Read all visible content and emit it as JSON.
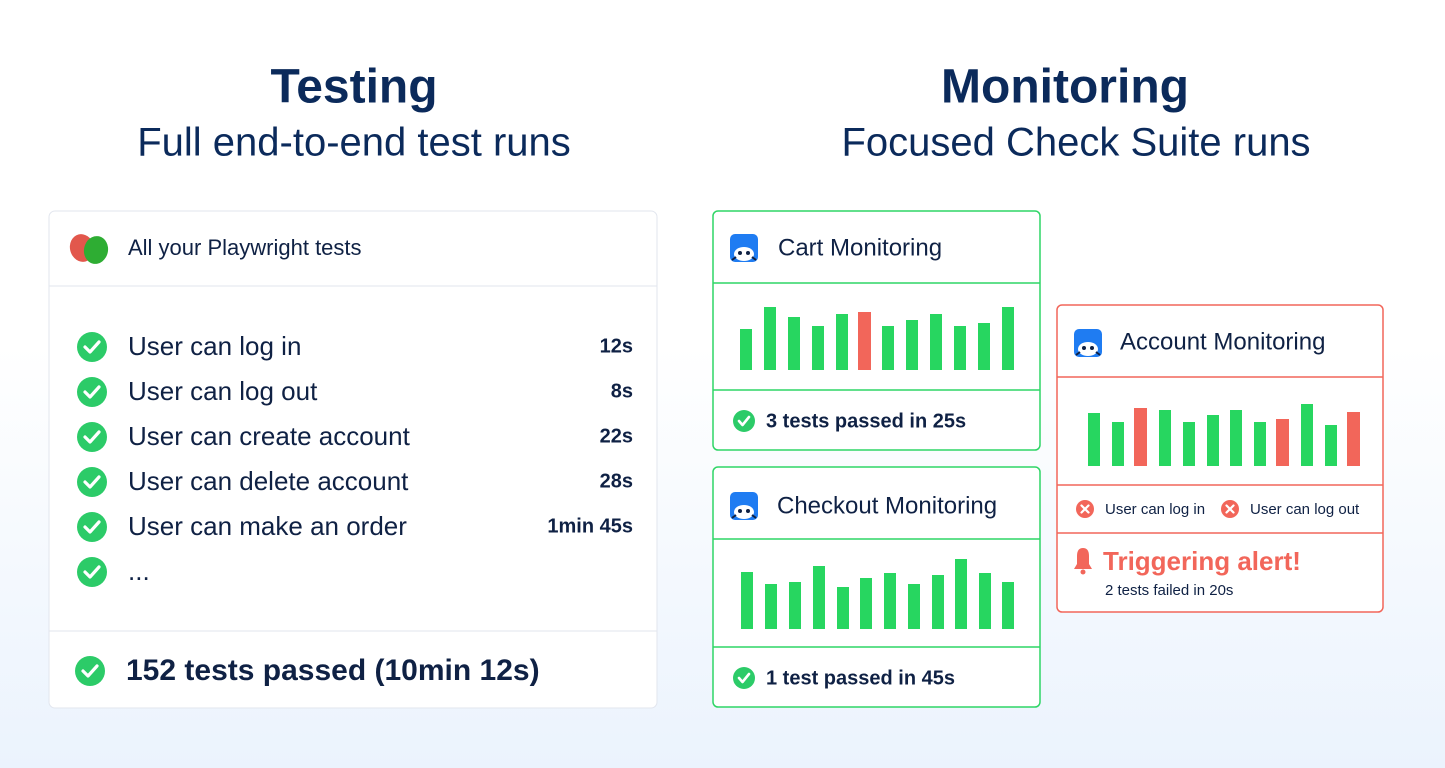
{
  "testing": {
    "title": "Testing",
    "subtitle": "Full end-to-end test runs",
    "card": {
      "header": "All your Playwright tests",
      "tests": [
        {
          "name": "User can log in",
          "duration": "12s"
        },
        {
          "name": "User can log out",
          "duration": "8s"
        },
        {
          "name": "User can create account",
          "duration": "22s"
        },
        {
          "name": "User can delete account",
          "duration": "28s"
        },
        {
          "name": "User can make an order",
          "duration": "1min 45s"
        }
      ],
      "more": "...",
      "summary": "152 tests passed (10min 12s)"
    }
  },
  "monitoring": {
    "title": "Monitoring",
    "subtitle": "Focused Check Suite runs",
    "checks": [
      {
        "name": "Cart Monitoring",
        "summary": "3 tests passed in 25s"
      },
      {
        "name": "Checkout Monitoring",
        "summary": "1 test passed in 45s"
      },
      {
        "name": "Account Monitoring",
        "failures": [
          "User can log in",
          "User can log out"
        ],
        "alert": "Triggering alert!",
        "alert_detail": "2 tests failed in 20s"
      }
    ]
  }
}
